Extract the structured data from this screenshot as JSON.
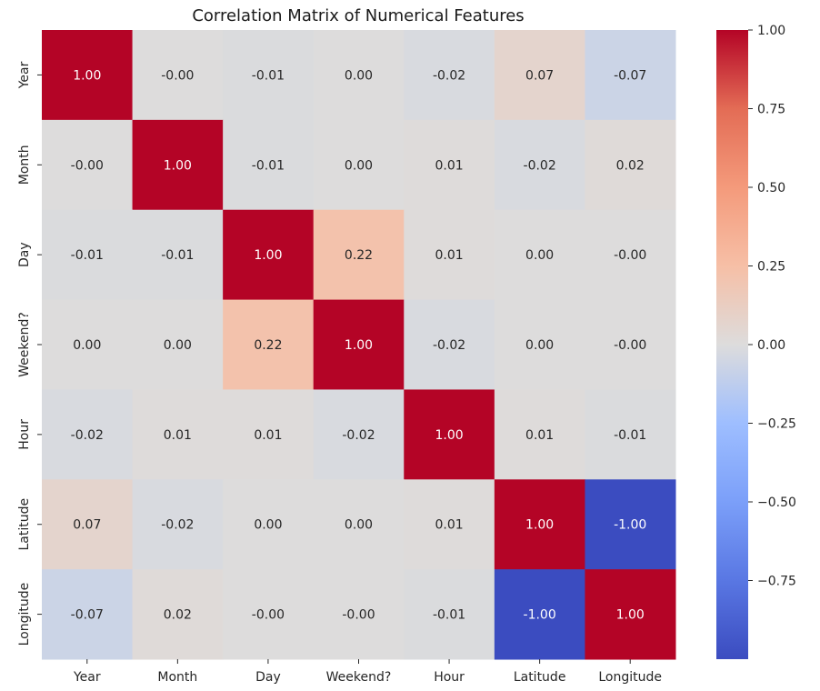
{
  "chart_data": {
    "type": "heatmap",
    "title": "Correlation Matrix of Numerical Features",
    "labels": [
      "Year",
      "Month",
      "Day",
      "Weekend?",
      "Hour",
      "Latitude",
      "Longitude"
    ],
    "values": [
      [
        1.0,
        -0.0,
        -0.01,
        0.0,
        -0.02,
        0.07,
        -0.07
      ],
      [
        -0.0,
        1.0,
        -0.01,
        0.0,
        0.01,
        -0.02,
        0.02
      ],
      [
        -0.01,
        -0.01,
        1.0,
        0.22,
        0.01,
        0.0,
        -0.0
      ],
      [
        0.0,
        0.0,
        0.22,
        1.0,
        -0.02,
        0.0,
        -0.0
      ],
      [
        -0.02,
        0.01,
        0.01,
        -0.02,
        1.0,
        0.01,
        -0.01
      ],
      [
        0.07,
        -0.02,
        0.0,
        0.0,
        0.01,
        1.0,
        -1.0
      ],
      [
        -0.07,
        0.02,
        -0.0,
        -0.0,
        -0.01,
        -1.0,
        1.0
      ]
    ],
    "cell_text": [
      [
        "1.00",
        "-0.00",
        "-0.01",
        "0.00",
        "-0.02",
        "0.07",
        "-0.07"
      ],
      [
        "-0.00",
        "1.00",
        "-0.01",
        "0.00",
        "0.01",
        "-0.02",
        "0.02"
      ],
      [
        "-0.01",
        "-0.01",
        "1.00",
        "0.22",
        "0.01",
        "0.00",
        "-0.00"
      ],
      [
        "0.00",
        "0.00",
        "0.22",
        "1.00",
        "-0.02",
        "0.00",
        "-0.00"
      ],
      [
        "-0.02",
        "0.01",
        "0.01",
        "-0.02",
        "1.00",
        "0.01",
        "-0.01"
      ],
      [
        "0.07",
        "-0.02",
        "0.00",
        "0.00",
        "0.01",
        "1.00",
        "-1.00"
      ],
      [
        "-0.07",
        "0.02",
        "-0.00",
        "-0.00",
        "-0.01",
        "-1.00",
        "1.00"
      ]
    ],
    "colormap": "coolwarm",
    "vmin": -1.0,
    "vmax": 1.0,
    "colorbar_ticks": [
      "1.00",
      "0.75",
      "0.50",
      "0.25",
      "0.00",
      "−0.25",
      "−0.50",
      "−0.75"
    ],
    "colorbar_tick_values": [
      1.0,
      0.75,
      0.5,
      0.25,
      0.0,
      -0.25,
      -0.5,
      -0.75
    ],
    "colors": {
      "max": "#b40426",
      "mid": "#dddcdc",
      "min": "#3b4cc0",
      "text_dark": "#262626",
      "text_light": "#ffffff"
    }
  }
}
